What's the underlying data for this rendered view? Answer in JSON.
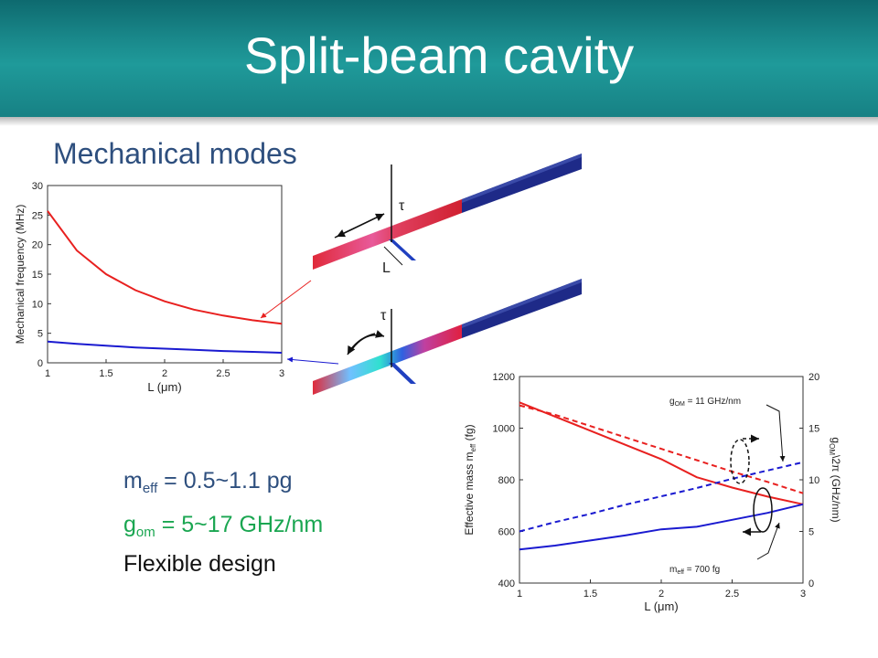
{
  "title": "Split-beam cavity",
  "subtitle": "Mechanical modes",
  "colors": {
    "header": "#1a8a8c",
    "red_curve": "#e8201f",
    "blue_curve": "#1a1ad0",
    "green_text": "#1aa651",
    "navy_text": "#2e4f7e"
  },
  "bullets": [
    {
      "main": "m",
      "sub": "eff",
      "rest": " = 0.5~1.1 pg"
    },
    {
      "main": "g",
      "sub": "om",
      "rest": " = 5~17 GHz/nm"
    },
    {
      "main": "Flexible design",
      "sub": "",
      "rest": ""
    }
  ],
  "beam_labels": {
    "torque_top": "τ",
    "length": "L",
    "torque_bottom": "τ"
  },
  "chart_data": [
    {
      "type": "line",
      "ylabel": "Mechanical frequency (MHz)",
      "xlabel": "L (μm)",
      "xlim": [
        1,
        3
      ],
      "ylim": [
        0,
        30
      ],
      "xticks": [
        "1",
        "1.5",
        "2",
        "2.5",
        "3"
      ],
      "yticks": [
        "0",
        "5",
        "10",
        "15",
        "20",
        "25",
        "30"
      ],
      "x": [
        1,
        1.25,
        1.5,
        1.75,
        2,
        2.25,
        2.5,
        2.75,
        3
      ],
      "series": [
        {
          "color": "#e8201f",
          "values": [
            25.7,
            19,
            15,
            12.3,
            10.4,
            9,
            8,
            7.2,
            6.6
          ]
        },
        {
          "color": "#1a1ad0",
          "values": [
            3.6,
            3.2,
            2.9,
            2.6,
            2.4,
            2.2,
            2.0,
            1.85,
            1.7
          ]
        }
      ]
    },
    {
      "type": "line",
      "ylabel": "Effective mass m",
      "ylabel_sub": "eff",
      "ylabel_tail": " (fg)",
      "y2label": "g",
      "y2label_sub": "OM",
      "y2label_tail": "\\2π (GHz/nm)",
      "xlabel": "L (μm)",
      "xlim": [
        1,
        3
      ],
      "ylim": [
        400,
        1200
      ],
      "y2lim": [
        0,
        20
      ],
      "xticks": [
        "1",
        "1.5",
        "2",
        "2.5",
        "3"
      ],
      "yticks": [
        "400",
        "600",
        "800",
        "1000",
        "1200"
      ],
      "y2ticks": [
        "0",
        "5",
        "10",
        "15",
        "20"
      ],
      "x": [
        1,
        1.25,
        1.5,
        1.75,
        2,
        2.25,
        2.5,
        2.75,
        3
      ],
      "series": [
        {
          "color": "#e8201f",
          "style": "solid",
          "axis": "left",
          "values": [
            1100,
            1045,
            990,
            935,
            880,
            810,
            770,
            735,
            705
          ]
        },
        {
          "color": "#1a1ad0",
          "style": "solid",
          "axis": "left",
          "values": [
            530,
            545,
            565,
            585,
            608,
            618,
            645,
            672,
            705
          ]
        },
        {
          "color": "#e8201f",
          "style": "dashed",
          "axis": "right",
          "values": [
            17.2,
            16.3,
            15.2,
            14.1,
            13.0,
            11.9,
            10.8,
            9.8,
            8.7
          ]
        },
        {
          "color": "#1a1ad0",
          "style": "dashed",
          "axis": "right",
          "values": [
            5.0,
            5.9,
            6.7,
            7.6,
            8.4,
            9.2,
            10.1,
            10.9,
            11.7
          ]
        }
      ],
      "annotations": [
        {
          "main": "g",
          "sub": "OM",
          "rest": " = 11 GHz/nm"
        },
        {
          "main": "m",
          "sub": "eff",
          "rest": " = 700 fg"
        }
      ]
    }
  ]
}
